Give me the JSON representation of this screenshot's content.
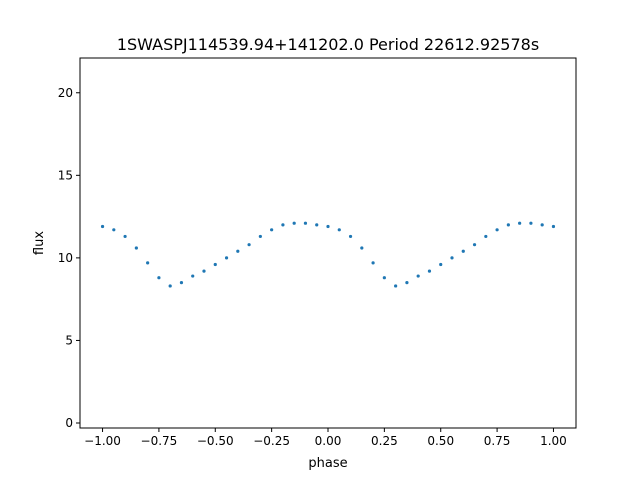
{
  "chart_data": {
    "type": "scatter",
    "title": "1SWASPJ114539.94+141202.0 Period 22612.92578s",
    "xlabel": "phase",
    "ylabel": "flux",
    "xlim": [
      -1.0,
      1.0
    ],
    "ylim": [
      0,
      21.5
    ],
    "x_ticks": [
      -1.0,
      -0.75,
      -0.5,
      -0.25,
      0.0,
      0.25,
      0.5,
      0.75,
      1.0
    ],
    "x_tick_labels": [
      "−1.00",
      "−0.75",
      "−0.50",
      "−0.25",
      "0.00",
      "0.25",
      "0.50",
      "0.75",
      "1.00"
    ],
    "y_ticks": [
      0,
      5,
      10,
      15,
      20
    ],
    "y_tick_labels": [
      "0",
      "5",
      "10",
      "15",
      "20"
    ],
    "grid": false,
    "legend": "none",
    "marker_color": "#1f77b4",
    "series": [
      {
        "points": [
          [
            -1.0,
            11.9
          ],
          [
            -0.95,
            11.7
          ],
          [
            -0.9,
            11.3
          ],
          [
            -0.85,
            10.6
          ],
          [
            -0.8,
            9.7
          ],
          [
            -0.75,
            8.8
          ],
          [
            -0.7,
            8.3
          ],
          [
            -0.65,
            8.5
          ],
          [
            -0.6,
            8.9
          ],
          [
            -0.55,
            9.2
          ],
          [
            -0.5,
            9.6
          ],
          [
            -0.45,
            10.0
          ],
          [
            -0.4,
            10.4
          ],
          [
            -0.35,
            10.8
          ],
          [
            -0.3,
            11.3
          ],
          [
            -0.25,
            11.7
          ],
          [
            -0.2,
            12.0
          ],
          [
            -0.15,
            12.1
          ],
          [
            -0.1,
            12.1
          ],
          [
            -0.05,
            12.0
          ],
          [
            0.0,
            11.9
          ],
          [
            0.05,
            11.7
          ],
          [
            0.1,
            11.3
          ],
          [
            0.15,
            10.6
          ],
          [
            0.2,
            9.7
          ],
          [
            0.25,
            8.8
          ],
          [
            0.3,
            8.3
          ],
          [
            0.35,
            8.5
          ],
          [
            0.4,
            8.9
          ],
          [
            0.45,
            9.2
          ],
          [
            0.5,
            9.6
          ],
          [
            0.55,
            10.0
          ],
          [
            0.6,
            10.4
          ],
          [
            0.65,
            10.8
          ],
          [
            0.7,
            11.3
          ],
          [
            0.75,
            11.7
          ],
          [
            0.8,
            12.0
          ],
          [
            0.85,
            12.1
          ],
          [
            0.9,
            12.1
          ],
          [
            0.95,
            12.0
          ],
          [
            1.0,
            11.9
          ]
        ]
      }
    ]
  }
}
